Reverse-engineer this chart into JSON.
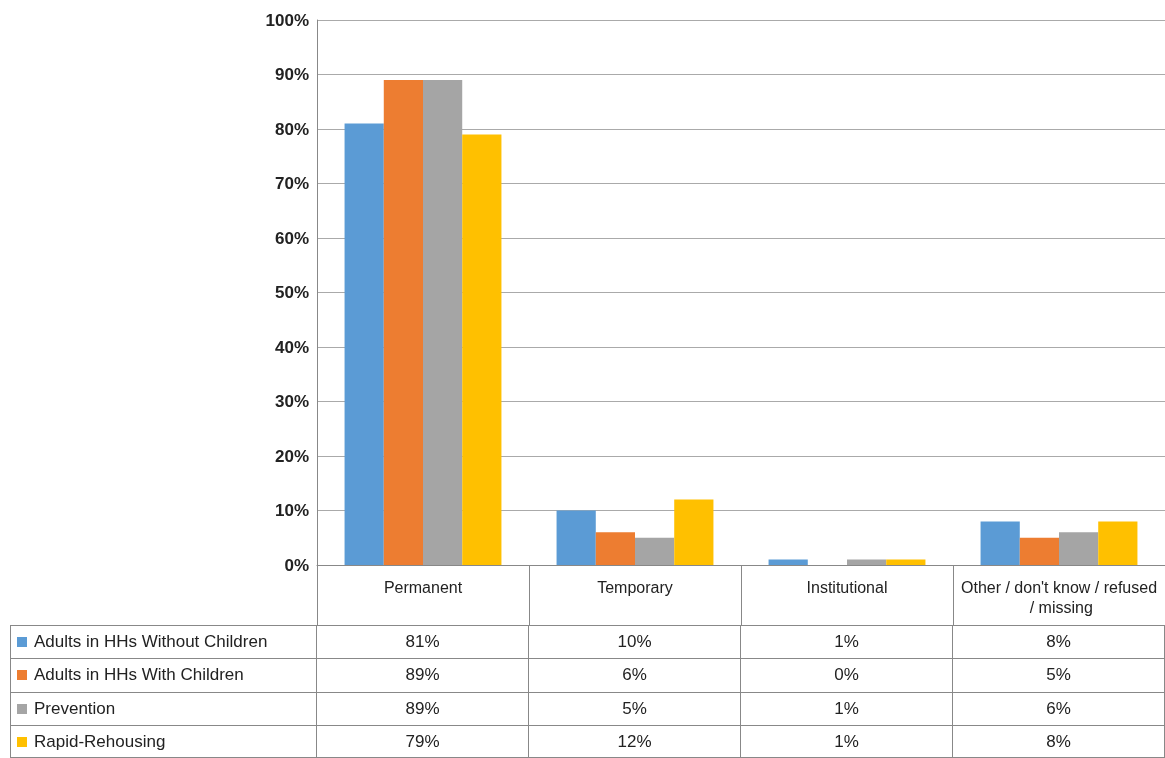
{
  "chart_data": {
    "type": "bar",
    "categories": [
      "Permanent",
      "Temporary",
      "Institutional",
      "Other / don't know / refused / missing"
    ],
    "series": [
      {
        "name": "Adults in HHs Without Children",
        "color": "#5b9bd5",
        "values": [
          81,
          10,
          1,
          8
        ],
        "value_labels": [
          "81%",
          "10%",
          "1%",
          "8%"
        ]
      },
      {
        "name": "Adults in HHs With Children",
        "color": "#ed7d31",
        "values": [
          89,
          6,
          0,
          5
        ],
        "value_labels": [
          "89%",
          "6%",
          "0%",
          "5%"
        ]
      },
      {
        "name": "Prevention",
        "color": "#a5a5a5",
        "values": [
          89,
          5,
          1,
          6
        ],
        "value_labels": [
          "89%",
          "5%",
          "1%",
          "6%"
        ]
      },
      {
        "name": "Rapid-Rehousing",
        "color": "#ffc000",
        "values": [
          79,
          12,
          1,
          8
        ],
        "value_labels": [
          "79%",
          "12%",
          "1%",
          "8%"
        ]
      }
    ],
    "ylim": [
      0,
      100
    ],
    "yticks": [
      {
        "value": 0,
        "label": "0%"
      },
      {
        "value": 10,
        "label": "10%"
      },
      {
        "value": 20,
        "label": "20%"
      },
      {
        "value": 30,
        "label": "30%"
      },
      {
        "value": 40,
        "label": "40%"
      },
      {
        "value": 50,
        "label": "50%"
      },
      {
        "value": 60,
        "label": "60%"
      },
      {
        "value": 70,
        "label": "70%"
      },
      {
        "value": 80,
        "label": "80%"
      },
      {
        "value": 90,
        "label": "90%"
      },
      {
        "value": 100,
        "label": "100%"
      }
    ],
    "grid": "y",
    "legend": "bottom"
  }
}
